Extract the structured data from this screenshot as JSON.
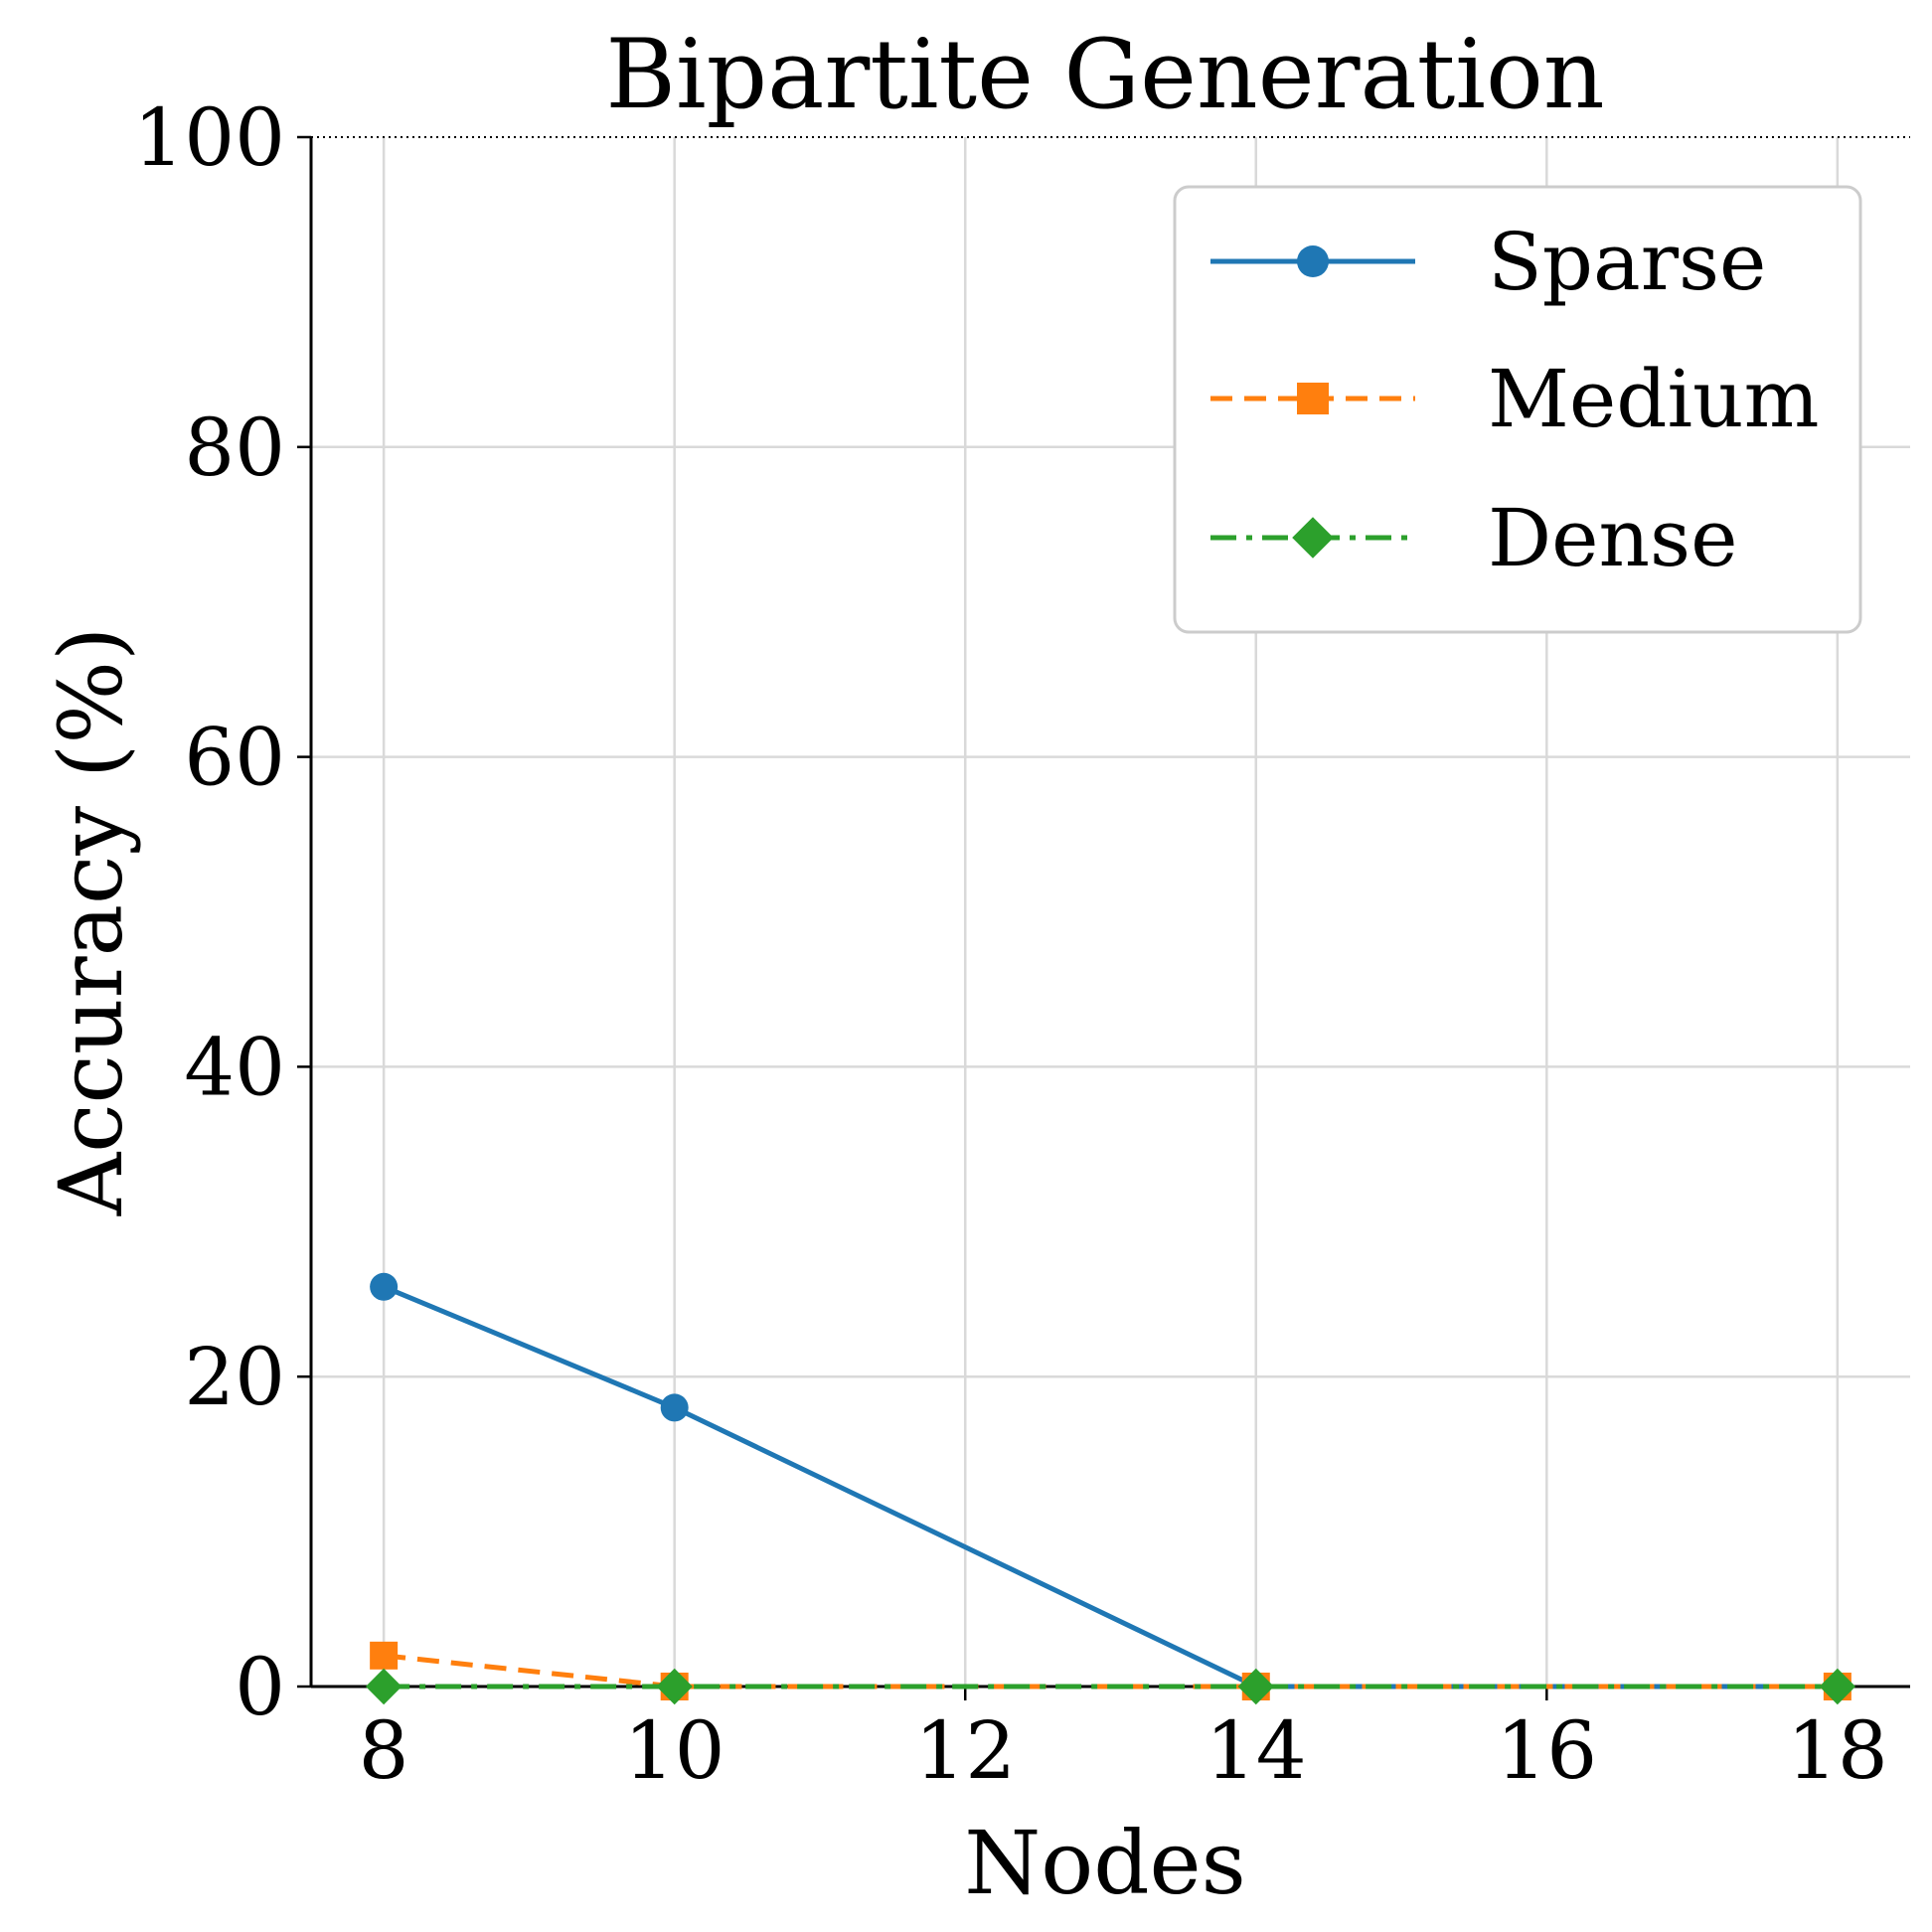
{
  "chart_data": {
    "type": "line",
    "title": "Bipartite Generation",
    "xlabel": "Nodes",
    "ylabel": "Accuracy (%)",
    "x": [
      8,
      10,
      14,
      18
    ],
    "xticks": [
      "8",
      "10",
      "12",
      "14",
      "16",
      "18"
    ],
    "yticks": [
      "0",
      "20",
      "40",
      "60",
      "80",
      "100"
    ],
    "xlim": [
      7.5,
      18.5
    ],
    "ylim": [
      0,
      100
    ],
    "grid": true,
    "reference_line": {
      "y": 100,
      "style": "dotted"
    },
    "legend_position": "top-right",
    "series": [
      {
        "name": "Sparse",
        "values": [
          25.8,
          18.0,
          0,
          0
        ],
        "color": "#1f77b4",
        "marker": "circle",
        "dash": "solid"
      },
      {
        "name": "Medium",
        "values": [
          2.0,
          0,
          0,
          0
        ],
        "color": "#ff7f0e",
        "marker": "square",
        "dash": "dashed"
      },
      {
        "name": "Dense",
        "values": [
          0,
          0,
          0,
          0
        ],
        "color": "#2ca02c",
        "marker": "diamond",
        "dash": "dashdot"
      }
    ]
  }
}
